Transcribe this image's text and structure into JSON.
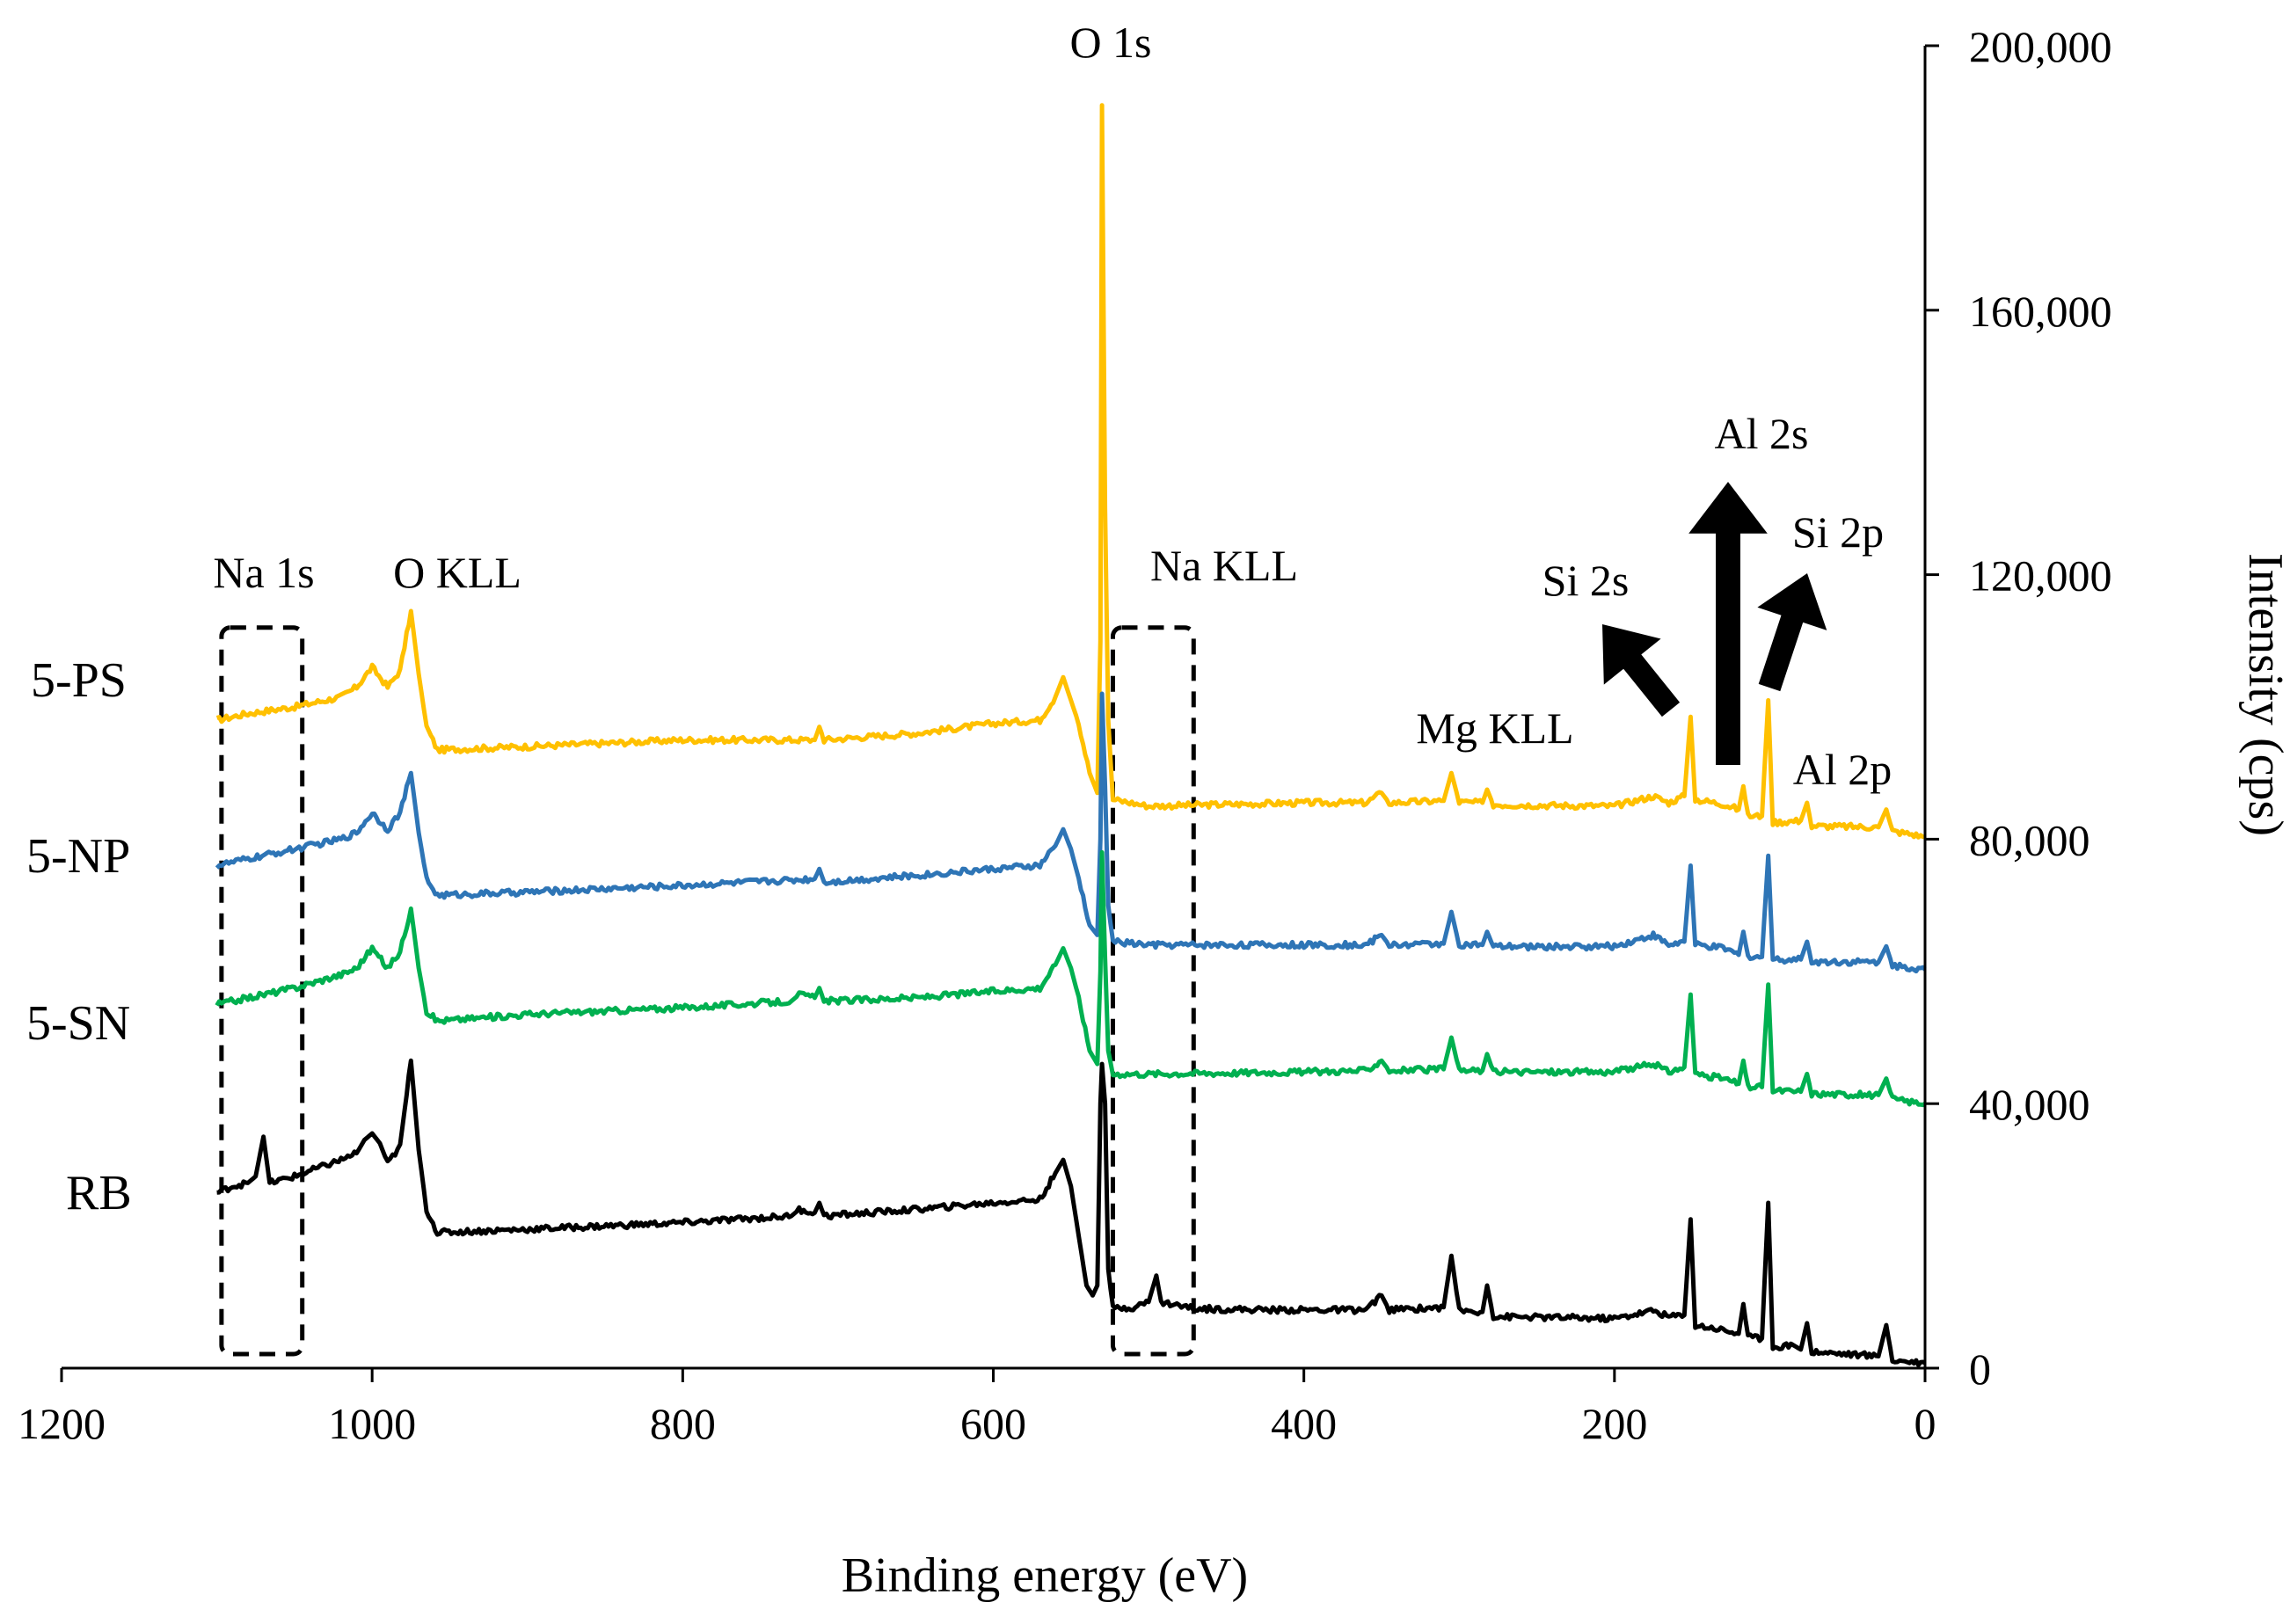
{
  "chart_data": {
    "type": "line",
    "title": "",
    "xlabel": "Binding energy (eV)",
    "ylabel": "Intensity (cps)",
    "xlim": [
      1200,
      0
    ],
    "ylim": [
      0,
      200000
    ],
    "x_ticks": [
      "1200",
      "1000",
      "800",
      "600",
      "400",
      "200",
      "0"
    ],
    "y_ticks": [
      "0",
      "40,000",
      "80,000",
      "120,000",
      "160,000",
      "200,000"
    ],
    "y_axis_side": "right",
    "baselines": {
      "RB": 20000,
      "5-SN": 54500,
      "5-NP": 74500,
      "5-PS": 95000
    },
    "series": [
      {
        "name": "5-PS",
        "label": "5-PS",
        "color": "#ffc000",
        "points": [
          [
            1100,
            98000
          ],
          [
            1080,
            99000
          ],
          [
            1050,
            100000
          ],
          [
            1020,
            101500
          ],
          [
            1010,
            103000
          ],
          [
            1000,
            106000
          ],
          [
            990,
            103000
          ],
          [
            982,
            105500
          ],
          [
            975,
            114500
          ],
          [
            970,
            105000
          ],
          [
            965,
            97000
          ],
          [
            958,
            93500
          ],
          [
            900,
            94000
          ],
          [
            800,
            95000
          ],
          [
            715,
            95000
          ],
          [
            712,
            97000
          ],
          [
            709,
            95000
          ],
          [
            650,
            96000
          ],
          [
            600,
            97500
          ],
          [
            570,
            98000
          ],
          [
            560,
            101500
          ],
          [
            555,
            104500
          ],
          [
            550,
            101000
          ],
          [
            545,
            97500
          ],
          [
            538,
            90000
          ],
          [
            533,
            87000
          ],
          [
            531,
            110000
          ],
          [
            530,
            191000
          ],
          [
            528,
            130000
          ],
          [
            526,
            98000
          ],
          [
            523,
            86000
          ],
          [
            500,
            85000
          ],
          [
            400,
            85500
          ],
          [
            360,
            85500
          ],
          [
            350,
            87000
          ],
          [
            345,
            85500
          ],
          [
            310,
            85800
          ],
          [
            305,
            90000
          ],
          [
            300,
            85600
          ],
          [
            285,
            85500
          ],
          [
            282,
            87500
          ],
          [
            278,
            85200
          ],
          [
            200,
            85000
          ],
          [
            175,
            86500
          ],
          [
            165,
            85500
          ],
          [
            155,
            86500
          ],
          [
            151,
            98500
          ],
          [
            148,
            86000
          ],
          [
            130,
            85300
          ],
          [
            120,
            84500
          ],
          [
            117,
            88000
          ],
          [
            114,
            83500
          ],
          [
            105,
            83500
          ],
          [
            101,
            101000
          ],
          [
            98,
            82500
          ],
          [
            80,
            82800
          ],
          [
            76,
            85500
          ],
          [
            73,
            82000
          ],
          [
            30,
            81800
          ],
          [
            25,
            84500
          ],
          [
            21,
            81200
          ],
          [
            10,
            80800
          ],
          [
            0,
            80300
          ]
        ]
      },
      {
        "name": "5-NP",
        "label": "5-NP",
        "color": "#2e75b6",
        "points": [
          [
            1100,
            76000
          ],
          [
            1080,
            77000
          ],
          [
            1050,
            78500
          ],
          [
            1020,
            80000
          ],
          [
            1010,
            81000
          ],
          [
            1000,
            84000
          ],
          [
            990,
            81500
          ],
          [
            982,
            84000
          ],
          [
            975,
            90000
          ],
          [
            970,
            81000
          ],
          [
            965,
            74000
          ],
          [
            958,
            71500
          ],
          [
            900,
            72000
          ],
          [
            800,
            73000
          ],
          [
            715,
            74000
          ],
          [
            712,
            75500
          ],
          [
            709,
            73500
          ],
          [
            650,
            74500
          ],
          [
            600,
            75500
          ],
          [
            570,
            76000
          ],
          [
            560,
            79000
          ],
          [
            555,
            81500
          ],
          [
            550,
            78500
          ],
          [
            545,
            74000
          ],
          [
            538,
            67000
          ],
          [
            533,
            65500
          ],
          [
            531,
            80000
          ],
          [
            530,
            102000
          ],
          [
            528,
            88000
          ],
          [
            526,
            70000
          ],
          [
            523,
            64500
          ],
          [
            500,
            64000
          ],
          [
            400,
            64000
          ],
          [
            360,
            64000
          ],
          [
            350,
            65500
          ],
          [
            345,
            64000
          ],
          [
            310,
            64200
          ],
          [
            305,
            69000
          ],
          [
            300,
            64000
          ],
          [
            285,
            64000
          ],
          [
            282,
            66000
          ],
          [
            278,
            63700
          ],
          [
            200,
            63800
          ],
          [
            175,
            65500
          ],
          [
            165,
            64000
          ],
          [
            155,
            64500
          ],
          [
            151,
            76000
          ],
          [
            148,
            64000
          ],
          [
            130,
            63500
          ],
          [
            120,
            62500
          ],
          [
            117,
            66000
          ],
          [
            114,
            62300
          ],
          [
            105,
            62200
          ],
          [
            101,
            77500
          ],
          [
            98,
            61800
          ],
          [
            80,
            61800
          ],
          [
            76,
            64500
          ],
          [
            73,
            61500
          ],
          [
            30,
            61400
          ],
          [
            25,
            63800
          ],
          [
            21,
            60900
          ],
          [
            10,
            60600
          ],
          [
            0,
            60300
          ]
        ]
      },
      {
        "name": "5-SN",
        "label": "5-SN",
        "color": "#00b050",
        "points": [
          [
            1100,
            55000
          ],
          [
            1080,
            56000
          ],
          [
            1050,
            57500
          ],
          [
            1020,
            59500
          ],
          [
            1010,
            60500
          ],
          [
            1000,
            63500
          ],
          [
            990,
            60500
          ],
          [
            982,
            63000
          ],
          [
            975,
            69500
          ],
          [
            970,
            60500
          ],
          [
            965,
            54000
          ],
          [
            958,
            52500
          ],
          [
            900,
            53500
          ],
          [
            800,
            54500
          ],
          [
            730,
            55500
          ],
          [
            725,
            56500
          ],
          [
            715,
            56000
          ],
          [
            712,
            57500
          ],
          [
            709,
            55500
          ],
          [
            650,
            56000
          ],
          [
            600,
            57000
          ],
          [
            570,
            57500
          ],
          [
            560,
            61000
          ],
          [
            555,
            63500
          ],
          [
            550,
            60500
          ],
          [
            545,
            56000
          ],
          [
            538,
            48000
          ],
          [
            533,
            46000
          ],
          [
            531,
            60000
          ],
          [
            530,
            78000
          ],
          [
            528,
            62000
          ],
          [
            526,
            48000
          ],
          [
            523,
            44500
          ],
          [
            500,
            44500
          ],
          [
            400,
            44800
          ],
          [
            360,
            45000
          ],
          [
            350,
            46500
          ],
          [
            345,
            45000
          ],
          [
            310,
            45200
          ],
          [
            305,
            50000
          ],
          [
            300,
            45000
          ],
          [
            285,
            45000
          ],
          [
            282,
            47500
          ],
          [
            278,
            44800
          ],
          [
            200,
            44800
          ],
          [
            175,
            46000
          ],
          [
            165,
            44800
          ],
          [
            155,
            45500
          ],
          [
            151,
            56500
          ],
          [
            148,
            44500
          ],
          [
            130,
            43800
          ],
          [
            120,
            43000
          ],
          [
            117,
            46500
          ],
          [
            114,
            42500
          ],
          [
            105,
            42500
          ],
          [
            101,
            58000
          ],
          [
            98,
            42000
          ],
          [
            80,
            41800
          ],
          [
            76,
            44500
          ],
          [
            73,
            41500
          ],
          [
            30,
            41300
          ],
          [
            25,
            43800
          ],
          [
            21,
            40700
          ],
          [
            10,
            40300
          ],
          [
            0,
            40000
          ]
        ]
      },
      {
        "name": "RB",
        "label": "RB",
        "color": "#000000",
        "points": [
          [
            1100,
            26500
          ],
          [
            1090,
            27500
          ],
          [
            1080,
            28000
          ],
          [
            1075,
            29000
          ],
          [
            1070,
            35000
          ],
          [
            1066,
            28000
          ],
          [
            1050,
            29000
          ],
          [
            1020,
            31500
          ],
          [
            1010,
            32500
          ],
          [
            1005,
            34500
          ],
          [
            1000,
            35500
          ],
          [
            995,
            34000
          ],
          [
            990,
            31000
          ],
          [
            982,
            33500
          ],
          [
            975,
            46500
          ],
          [
            970,
            33000
          ],
          [
            965,
            24000
          ],
          [
            958,
            20500
          ],
          [
            900,
            21000
          ],
          [
            800,
            22000
          ],
          [
            730,
            23000
          ],
          [
            725,
            24000
          ],
          [
            715,
            23500
          ],
          [
            712,
            25000
          ],
          [
            709,
            23000
          ],
          [
            650,
            24000
          ],
          [
            600,
            25000
          ],
          [
            570,
            25500
          ],
          [
            560,
            29500
          ],
          [
            555,
            31500
          ],
          [
            550,
            27500
          ],
          [
            545,
            20000
          ],
          [
            540,
            12500
          ],
          [
            536,
            11000
          ],
          [
            533,
            12500
          ],
          [
            531,
            40000
          ],
          [
            530,
            46000
          ],
          [
            528,
            40000
          ],
          [
            526,
            15000
          ],
          [
            523,
            9000
          ],
          [
            510,
            9200
          ],
          [
            500,
            10000
          ],
          [
            495,
            14000
          ],
          [
            492,
            10000
          ],
          [
            470,
            9000
          ],
          [
            420,
            8800
          ],
          [
            360,
            8800
          ],
          [
            350,
            11000
          ],
          [
            345,
            8800
          ],
          [
            310,
            9200
          ],
          [
            305,
            17000
          ],
          [
            300,
            8700
          ],
          [
            285,
            8500
          ],
          [
            282,
            12500
          ],
          [
            278,
            7800
          ],
          [
            200,
            7500
          ],
          [
            175,
            8700
          ],
          [
            165,
            7800
          ],
          [
            155,
            8000
          ],
          [
            151,
            22500
          ],
          [
            148,
            6500
          ],
          [
            130,
            5800
          ],
          [
            120,
            5200
          ],
          [
            117,
            9700
          ],
          [
            114,
            4700
          ],
          [
            105,
            4500
          ],
          [
            101,
            25000
          ],
          [
            98,
            3200
          ],
          [
            85,
            3500
          ],
          [
            80,
            2800
          ],
          [
            76,
            6800
          ],
          [
            73,
            2500
          ],
          [
            30,
            1800
          ],
          [
            25,
            6500
          ],
          [
            21,
            1200
          ],
          [
            10,
            1000
          ],
          [
            0,
            800
          ]
        ]
      }
    ],
    "annotations": [
      {
        "text": "O 1s"
      },
      {
        "text": "Na 1s"
      },
      {
        "text": "O KLL"
      },
      {
        "text": "Na KLL"
      },
      {
        "text": "Mg KLL"
      },
      {
        "text": "Si 2s"
      },
      {
        "text": "Al 2s"
      },
      {
        "text": "Si 2p"
      },
      {
        "text": "Al 2p"
      }
    ],
    "highlight_boxes": [
      {
        "region": "Na 1s",
        "x_range": [
          1097,
          1045
        ],
        "y_range": [
          0,
          112000
        ],
        "style": "dashed"
      },
      {
        "region": "Na KLL",
        "x_range": [
          523,
          471
        ],
        "y_range": [
          0,
          112000
        ],
        "style": "dashed"
      }
    ]
  }
}
